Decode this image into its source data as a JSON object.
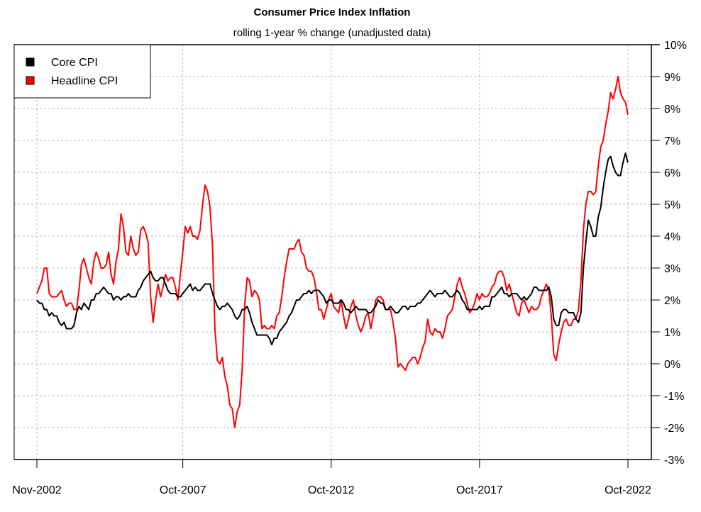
{
  "chart_data": {
    "type": "line",
    "title": "Consumer Price Index Inflation",
    "subtitle": "rolling 1-year % change (unadjusted data)",
    "xlabel": "",
    "ylabel": "",
    "x_start": "Nov-2002",
    "x_end": "Oct-2022",
    "x_frequency": "monthly",
    "x_ticks": [
      "Nov-2002",
      "Oct-2007",
      "Oct-2012",
      "Oct-2017",
      "Oct-2022"
    ],
    "y_ticks": [
      "-3%",
      "-2%",
      "-1%",
      "0%",
      "1%",
      "2%",
      "3%",
      "4%",
      "5%",
      "6%",
      "7%",
      "8%",
      "9%",
      "10%"
    ],
    "ylim": [
      -3,
      10
    ],
    "y_axis_side": "right",
    "grid": true,
    "legend_position": "top-left",
    "series": [
      {
        "name": "Core CPI",
        "color": "#000000",
        "values": [
          2.0,
          1.9,
          1.9,
          1.7,
          1.7,
          1.5,
          1.6,
          1.5,
          1.5,
          1.3,
          1.2,
          1.3,
          1.1,
          1.1,
          1.1,
          1.2,
          1.6,
          1.8,
          1.7,
          1.9,
          1.8,
          1.7,
          2.0,
          2.0,
          2.2,
          2.2,
          2.3,
          2.4,
          2.3,
          2.2,
          2.2,
          2.0,
          2.1,
          2.1,
          2.0,
          2.1,
          2.1,
          2.2,
          2.1,
          2.1,
          2.1,
          2.3,
          2.4,
          2.6,
          2.7,
          2.8,
          2.9,
          2.7,
          2.6,
          2.6,
          2.7,
          2.7,
          2.5,
          2.3,
          2.2,
          2.2,
          2.2,
          2.1,
          2.1,
          2.2,
          2.3,
          2.4,
          2.5,
          2.3,
          2.4,
          2.3,
          2.3,
          2.4,
          2.5,
          2.5,
          2.5,
          2.2,
          2.0,
          1.8,
          1.7,
          1.8,
          1.8,
          1.9,
          1.8,
          1.7,
          1.5,
          1.4,
          1.5,
          1.7,
          1.7,
          1.8,
          1.6,
          1.3,
          1.1,
          0.9,
          0.9,
          0.9,
          0.9,
          0.9,
          0.8,
          0.6,
          0.8,
          0.8,
          1.0,
          1.1,
          1.2,
          1.3,
          1.5,
          1.6,
          1.8,
          2.0,
          2.0,
          2.1,
          2.2,
          2.2,
          2.3,
          2.2,
          2.3,
          2.3,
          2.3,
          2.2,
          2.1,
          1.9,
          2.0,
          2.0,
          1.9,
          1.9,
          1.9,
          2.0,
          1.9,
          1.7,
          1.7,
          1.6,
          1.7,
          1.8,
          1.7,
          1.7,
          1.7,
          1.7,
          1.6,
          1.6,
          1.7,
          1.8,
          2.0,
          1.9,
          1.9,
          1.7,
          1.7,
          1.8,
          1.7,
          1.6,
          1.6,
          1.7,
          1.8,
          1.8,
          1.7,
          1.8,
          1.8,
          1.8,
          1.9,
          1.9,
          2.0,
          2.1,
          2.2,
          2.3,
          2.2,
          2.1,
          2.2,
          2.2,
          2.2,
          2.3,
          2.2,
          2.1,
          2.1,
          2.2,
          2.3,
          2.2,
          2.0,
          1.9,
          1.7,
          1.7,
          1.7,
          1.7,
          1.7,
          1.8,
          1.7,
          1.8,
          1.8,
          1.8,
          2.1,
          2.1,
          2.2,
          2.3,
          2.4,
          2.2,
          2.2,
          2.1,
          2.2,
          2.2,
          2.2,
          2.1,
          2.0,
          2.1,
          2.0,
          2.1,
          2.2,
          2.4,
          2.4,
          2.3,
          2.3,
          2.3,
          2.3,
          2.4,
          2.1,
          1.4,
          1.2,
          1.2,
          1.6,
          1.7,
          1.7,
          1.6,
          1.6,
          1.6,
          1.4,
          1.3,
          1.6,
          3.0,
          3.8,
          4.5,
          4.3,
          4.0,
          4.0,
          4.6,
          4.9,
          5.5,
          6.0,
          6.4,
          6.5,
          6.2,
          6.0,
          5.9,
          5.9,
          6.3,
          6.6,
          6.3
        ]
      },
      {
        "name": "Headline CPI",
        "color": "#ff0000",
        "values": [
          2.2,
          2.4,
          2.6,
          3.0,
          3.0,
          2.2,
          2.1,
          2.1,
          2.1,
          2.2,
          2.3,
          2.0,
          1.8,
          1.9,
          1.9,
          1.7,
          1.7,
          2.3,
          3.1,
          3.3,
          3.0,
          2.7,
          2.5,
          3.2,
          3.5,
          3.3,
          3.0,
          3.0,
          3.1,
          3.5,
          2.8,
          2.5,
          3.2,
          3.6,
          4.7,
          4.3,
          3.5,
          3.4,
          4.0,
          3.6,
          3.4,
          3.5,
          4.2,
          4.3,
          4.1,
          3.8,
          2.1,
          1.3,
          2.0,
          2.5,
          2.1,
          2.4,
          2.8,
          2.6,
          2.7,
          2.7,
          2.4,
          2.0,
          2.8,
          3.5,
          4.3,
          4.1,
          4.3,
          4.0,
          4.0,
          3.9,
          4.2,
          5.0,
          5.6,
          5.4,
          4.9,
          3.7,
          1.1,
          0.1,
          0.0,
          0.2,
          -0.4,
          -0.7,
          -1.3,
          -1.4,
          -2.0,
          -1.5,
          -1.3,
          -0.2,
          1.8,
          2.7,
          2.6,
          2.1,
          2.3,
          2.2,
          2.0,
          1.1,
          1.2,
          1.1,
          1.1,
          1.2,
          1.1,
          1.5,
          1.6,
          2.1,
          2.7,
          3.2,
          3.6,
          3.6,
          3.6,
          3.8,
          3.9,
          3.5,
          3.4,
          3.0,
          2.9,
          2.9,
          2.7,
          2.3,
          1.7,
          1.7,
          1.4,
          1.7,
          2.0,
          2.2,
          1.8,
          1.7,
          1.6,
          2.0,
          1.5,
          1.1,
          1.4,
          1.8,
          2.0,
          1.5,
          1.2,
          1.0,
          1.2,
          1.5,
          1.6,
          1.1,
          1.5,
          2.0,
          2.1,
          2.1,
          2.0,
          1.7,
          1.7,
          1.7,
          1.3,
          0.8,
          -0.1,
          0.0,
          -0.1,
          -0.2,
          0.0,
          0.1,
          0.2,
          0.2,
          0.0,
          0.2,
          0.5,
          0.7,
          1.4,
          1.0,
          0.9,
          1.1,
          1.0,
          1.0,
          0.8,
          1.1,
          1.5,
          1.6,
          1.7,
          2.1,
          2.5,
          2.7,
          2.4,
          2.2,
          1.9,
          1.6,
          1.7,
          1.9,
          2.2,
          2.0,
          2.2,
          2.1,
          2.1,
          2.2,
          2.4,
          2.5,
          2.8,
          2.9,
          2.9,
          2.7,
          2.3,
          2.5,
          2.2,
          1.9,
          1.6,
          1.5,
          1.9,
          2.0,
          1.8,
          1.6,
          1.8,
          1.7,
          1.7,
          1.8,
          2.1,
          2.3,
          2.5,
          2.3,
          1.5,
          0.3,
          0.1,
          0.6,
          1.0,
          1.3,
          1.4,
          1.2,
          1.2,
          1.4,
          1.4,
          1.7,
          2.6,
          4.2,
          5.0,
          5.4,
          5.4,
          5.3,
          5.4,
          6.2,
          6.8,
          7.0,
          7.5,
          7.9,
          8.5,
          8.3,
          8.6,
          9.0,
          8.5,
          8.3,
          8.2,
          7.8
        ]
      }
    ]
  }
}
